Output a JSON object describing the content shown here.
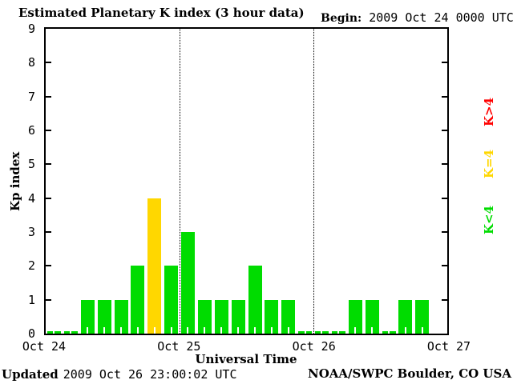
{
  "header": {
    "title": "Estimated Planetary K index (3 hour data)",
    "begin_label": "Begin:",
    "begin_value": "2009 Oct 24 0000 UTC"
  },
  "chart_data": {
    "type": "bar",
    "title": "Estimated Planetary K index (3 hour data)",
    "xlabel": "Universal Time",
    "ylabel": "Kp index",
    "ylim": [
      0,
      9
    ],
    "y_ticks": [
      0,
      1,
      2,
      3,
      4,
      5,
      6,
      7,
      8,
      9
    ],
    "x_tick_labels": [
      "Oct 24",
      "Oct 25",
      "Oct 26",
      "Oct 27"
    ],
    "hours_per_bar": 3,
    "begin": "2009 Oct 24 0000 UTC",
    "days": [
      {
        "date": "Oct 24",
        "values": [
          0,
          0,
          1,
          1,
          1,
          2,
          4,
          2
        ]
      },
      {
        "date": "Oct 25",
        "values": [
          3,
          1,
          1,
          1,
          2,
          1,
          1,
          0
        ]
      },
      {
        "date": "Oct 26",
        "values": [
          0,
          0,
          1,
          1,
          0,
          1,
          1,
          null
        ]
      }
    ],
    "colors": {
      "k_lt_4": "#00dc00",
      "k_eq_4": "#ffd700",
      "k_gt_4": "#ff0000"
    },
    "grid": {
      "day_separators": "dotted"
    },
    "legend_position": "right"
  },
  "legend": {
    "items": [
      {
        "label": "K>4",
        "color": "#ff0000"
      },
      {
        "label": "K=4",
        "color": "#ffd700"
      },
      {
        "label": "K<4",
        "color": "#00dc00"
      }
    ]
  },
  "footer": {
    "xaxis_title": "Universal Time",
    "updated_label": "Updated",
    "updated_value": "2009 Oct 26 23:00:02 UTC",
    "credit": "NOAA/SWPC Boulder, CO USA"
  }
}
